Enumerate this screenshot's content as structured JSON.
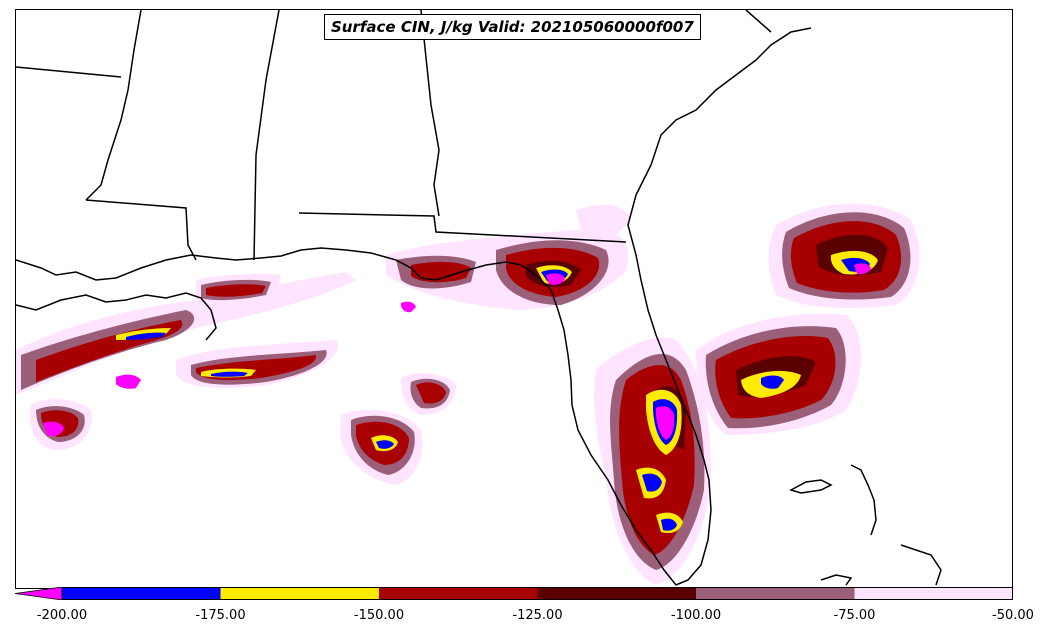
{
  "title": "Surface CIN, J/kg Valid: 202105060000f007",
  "colorbar": {
    "levels": [
      "-200.00",
      "-175.00",
      "-150.00",
      "-125.00",
      "-100.00",
      "-75.00",
      "-50.00"
    ],
    "colors": [
      "#ff00ff",
      "#0000ff",
      "#ffeb00",
      "#a80000",
      "#5a0000",
      "#9c5f7a",
      "#ffe4ff"
    ]
  },
  "legend_colors": {
    "magenta": "#ff00ff",
    "blue": "#0000ff",
    "yellow": "#ffeb00",
    "red": "#a80000",
    "dark_red": "#5a0000",
    "mauve": "#9c5f7a",
    "pale_pink": "#ffe4ff"
  }
}
